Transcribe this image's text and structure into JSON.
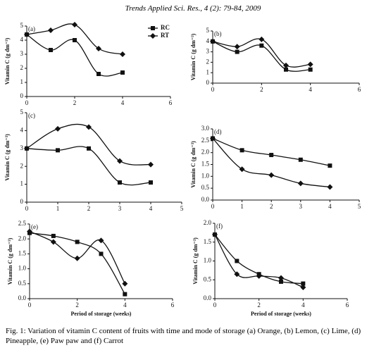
{
  "header": "Trends Applied Sci. Res., 4 (2): 79-84, 2009",
  "caption": "Fig. 1: Variation of vitamin C content of fruits with time and mode of storage (a) Orange, (b) Lemon, (c) Lime, (d) Pineapple, (e) Paw paw and (f) Carrot",
  "chart_data": [
    {
      "type": "line",
      "label": "(a)",
      "ylabel": "Vitamin C (g dm⁻³)",
      "x": [
        0,
        1,
        2,
        3,
        4
      ],
      "xlim": [
        0,
        6
      ],
      "xticks": [
        0,
        2,
        4,
        6
      ],
      "ylim": [
        0,
        5
      ],
      "yticks": [
        0,
        1,
        2,
        3,
        4,
        5
      ],
      "legend": "upper right",
      "series": [
        {
          "name": "RC",
          "color": "#111111",
          "marker": "square",
          "values": [
            4.4,
            3.3,
            4.0,
            1.6,
            1.7
          ]
        },
        {
          "name": "RT",
          "color": "#111111",
          "marker": "diamond",
          "values": [
            4.4,
            4.7,
            5.1,
            3.4,
            3.0
          ]
        }
      ]
    },
    {
      "type": "line",
      "label": "(b)",
      "ylabel": "Vitamin C (g dm⁻³)",
      "x": [
        0,
        1,
        2,
        3,
        4
      ],
      "xlim": [
        0,
        6
      ],
      "xticks": [
        0,
        2,
        4,
        6
      ],
      "ylim": [
        0,
        5
      ],
      "yticks": [
        0,
        1,
        2,
        3,
        4,
        5
      ],
      "series": [
        {
          "color": "#111111",
          "marker": "square",
          "values": [
            4.0,
            3.0,
            3.6,
            1.3,
            1.3
          ]
        },
        {
          "color": "#111111",
          "marker": "diamond",
          "values": [
            4.0,
            3.5,
            4.2,
            1.7,
            1.8
          ]
        }
      ]
    },
    {
      "type": "line",
      "label": "(c)",
      "ylabel": "Vitamin C (g dm⁻³)",
      "x": [
        0,
        1,
        2,
        3,
        4
      ],
      "xlim": [
        0,
        5
      ],
      "xticks": [
        0,
        1,
        2,
        3,
        4,
        5
      ],
      "ylim": [
        0,
        5
      ],
      "yticks": [
        0,
        1,
        2,
        3,
        4,
        5
      ],
      "series": [
        {
          "color": "#111111",
          "marker": "square",
          "values": [
            3.0,
            2.9,
            3.0,
            1.1,
            1.1
          ]
        },
        {
          "color": "#111111",
          "marker": "diamond",
          "values": [
            3.0,
            4.1,
            4.2,
            2.3,
            2.1
          ]
        }
      ]
    },
    {
      "type": "line",
      "label": "(d)",
      "ylabel": "Vitamin C (g dm⁻³)",
      "x": [
        0,
        1,
        2,
        3,
        4
      ],
      "xlim": [
        0,
        5
      ],
      "xticks": [
        0,
        1,
        2,
        3,
        4,
        5
      ],
      "ylim": [
        0,
        3
      ],
      "yticks": [
        {
          "value": 0,
          "label": "0.0"
        },
        0.5,
        {
          "value": 1,
          "label": "1.0"
        },
        1.5,
        {
          "value": 2,
          "label": "2.0"
        },
        2.5,
        {
          "value": 3,
          "label": "3.0"
        }
      ],
      "series": [
        {
          "color": "#111111",
          "marker": "square",
          "values": [
            2.6,
            2.1,
            1.9,
            1.7,
            1.45
          ]
        },
        {
          "color": "#111111",
          "marker": "diamond",
          "values": [
            2.6,
            1.3,
            1.05,
            0.7,
            0.55
          ]
        }
      ]
    },
    {
      "type": "line",
      "label": "(e)",
      "ylabel": "Vitamin C (g dm⁻³)",
      "xlabel": "Period of storage (weeks)",
      "x": [
        0,
        1,
        2,
        3,
        4
      ],
      "xlim": [
        0,
        6
      ],
      "xticks": [
        0,
        2,
        4,
        6
      ],
      "ylim": [
        0,
        2.5
      ],
      "yticks": [
        {
          "value": 0,
          "label": "0.0"
        },
        0.5,
        {
          "value": 1,
          "label": "1.0"
        },
        1.5,
        {
          "value": 2,
          "label": "2.0"
        },
        2.5
      ],
      "series": [
        {
          "color": "#111111",
          "marker": "square",
          "values": [
            2.2,
            2.1,
            1.9,
            1.5,
            0.15
          ]
        },
        {
          "color": "#111111",
          "marker": "diamond",
          "values": [
            2.25,
            1.9,
            1.35,
            1.95,
            0.5
          ]
        }
      ]
    },
    {
      "type": "line",
      "label": "(f)",
      "ylabel": "Vitamin C (g dm⁻³)",
      "xlabel": "Period of storage (weeks)",
      "x": [
        0,
        1,
        2,
        3,
        4
      ],
      "xlim": [
        0,
        6
      ],
      "xticks": [
        0,
        2,
        4,
        6
      ],
      "ylim": [
        0,
        2
      ],
      "yticks": [
        {
          "value": 0,
          "label": "0.0"
        },
        0.5,
        {
          "value": 1,
          "label": "1.0"
        },
        1.5,
        {
          "value": 2,
          "label": "2.0"
        }
      ],
      "series": [
        {
          "color": "#111111",
          "marker": "square",
          "values": [
            1.7,
            1.0,
            0.65,
            0.45,
            0.4
          ]
        },
        {
          "color": "#111111",
          "marker": "diamond",
          "values": [
            1.7,
            0.65,
            0.6,
            0.55,
            0.3
          ]
        }
      ]
    }
  ]
}
